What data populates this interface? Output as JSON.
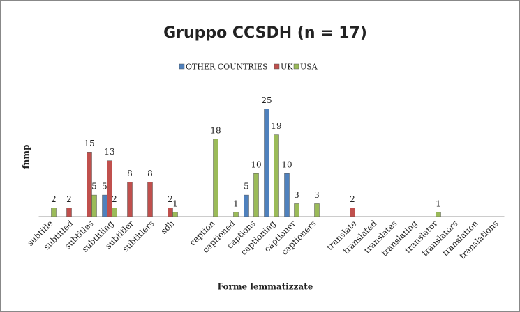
{
  "chart_data": {
    "type": "bar",
    "title": "Gruppo CCSDH (n = 17)",
    "y_label": "fnmp",
    "x_label": "Forme lemmatizzate",
    "legend": "top",
    "categories": [
      "subtitle",
      "subtitled",
      "subtitles",
      "subtitling",
      "subtitler",
      "subtitlers",
      "sdh",
      null,
      "caption",
      "captioned",
      "captions",
      "captioning",
      "captioner",
      "captioners",
      null,
      "translate",
      "translated",
      "translates",
      "translating",
      "translator",
      "translators",
      "translation",
      "translations"
    ],
    "series": [
      {
        "name": "OTHER COUNTRIES",
        "color": "#4f81bd",
        "values": [
          null,
          null,
          null,
          5,
          null,
          null,
          null,
          null,
          null,
          null,
          5,
          25,
          10,
          null,
          null,
          null,
          null,
          null,
          null,
          null,
          null,
          null,
          null
        ]
      },
      {
        "name": "UK",
        "color": "#c0504d",
        "values": [
          null,
          2,
          15,
          13,
          8,
          8,
          2,
          null,
          null,
          null,
          null,
          null,
          null,
          null,
          null,
          2,
          null,
          null,
          null,
          null,
          null,
          null,
          null
        ]
      },
      {
        "name": "USA",
        "color": "#9bbb59",
        "values": [
          2,
          null,
          5,
          2,
          null,
          null,
          1,
          null,
          18,
          1,
          10,
          19,
          3,
          3,
          null,
          null,
          null,
          null,
          null,
          1,
          null,
          null,
          null
        ]
      }
    ],
    "ylim": [
      0,
      28
    ]
  }
}
